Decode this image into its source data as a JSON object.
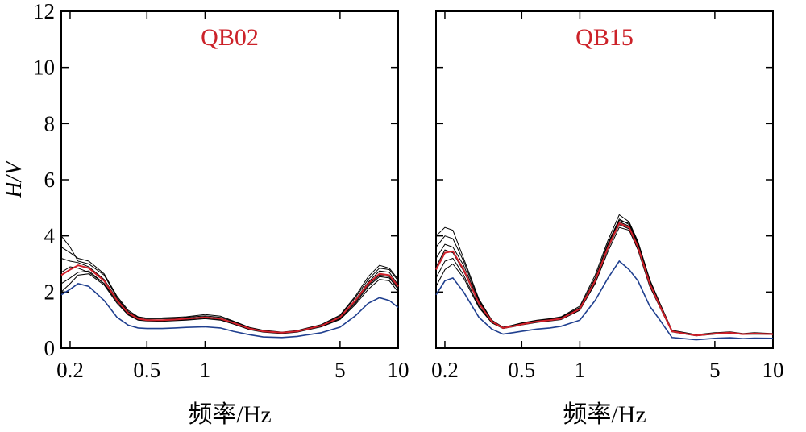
{
  "colors": {
    "mean": "#d0202a",
    "low": "#1f3f8f",
    "runs": "#000000",
    "panel_title": "#cc2229"
  },
  "chart_data": [
    {
      "type": "line",
      "title": "QB02",
      "xlabel": "频率/Hz",
      "ylabel": "H/V",
      "x_scale": "log",
      "xlim": [
        0.18,
        10
      ],
      "ylim": [
        0,
        12
      ],
      "xticks": [
        0.2,
        0.5,
        1,
        5,
        10
      ],
      "xtick_labels": [
        "0.2",
        "0.5",
        "1",
        "5",
        "10"
      ],
      "yticks": [
        0,
        2,
        4,
        6,
        8,
        10,
        12
      ],
      "ytick_labels": [
        "0",
        "2",
        "4",
        "6",
        "8",
        "10",
        "12"
      ],
      "x": [
        0.18,
        0.2,
        0.22,
        0.25,
        0.3,
        0.35,
        0.4,
        0.45,
        0.5,
        0.6,
        0.7,
        0.8,
        1.0,
        1.2,
        1.4,
        1.7,
        2.0,
        2.5,
        3.0,
        4.0,
        5.0,
        6.0,
        7.0,
        8.0,
        9.0,
        10.0
      ],
      "series": [
        {
          "role": "mean",
          "values": [
            2.6,
            2.8,
            2.95,
            2.85,
            2.4,
            1.7,
            1.25,
            1.05,
            1.0,
            1.0,
            1.02,
            1.05,
            1.1,
            1.05,
            0.9,
            0.7,
            0.6,
            0.55,
            0.6,
            0.8,
            1.1,
            1.7,
            2.3,
            2.65,
            2.6,
            2.2
          ]
        },
        {
          "role": "low",
          "values": [
            1.9,
            2.1,
            2.3,
            2.2,
            1.7,
            1.1,
            0.82,
            0.72,
            0.7,
            0.7,
            0.72,
            0.74,
            0.76,
            0.72,
            0.6,
            0.48,
            0.4,
            0.38,
            0.42,
            0.55,
            0.75,
            1.15,
            1.6,
            1.8,
            1.7,
            1.45
          ]
        },
        {
          "role": "run",
          "values": [
            4.0,
            3.6,
            3.1,
            3.0,
            2.6,
            1.8,
            1.3,
            1.1,
            1.05,
            1.05,
            1.05,
            1.1,
            1.15,
            1.1,
            0.95,
            0.72,
            0.62,
            0.55,
            0.62,
            0.82,
            1.15,
            1.8,
            2.45,
            2.85,
            2.8,
            2.4
          ]
        },
        {
          "role": "run",
          "values": [
            3.2,
            3.1,
            3.05,
            2.9,
            2.45,
            1.75,
            1.28,
            1.07,
            1.02,
            1.0,
            1.03,
            1.06,
            1.12,
            1.06,
            0.92,
            0.7,
            0.6,
            0.54,
            0.6,
            0.8,
            1.1,
            1.72,
            2.35,
            2.75,
            2.7,
            2.25
          ]
        },
        {
          "role": "run",
          "values": [
            2.3,
            2.5,
            2.7,
            2.75,
            2.3,
            1.65,
            1.2,
            1.02,
            0.98,
            0.98,
            1.0,
            1.02,
            1.08,
            1.02,
            0.88,
            0.68,
            0.58,
            0.53,
            0.58,
            0.78,
            1.05,
            1.6,
            2.2,
            2.55,
            2.5,
            2.1
          ]
        },
        {
          "role": "run",
          "values": [
            2.0,
            2.3,
            2.6,
            2.65,
            2.25,
            1.6,
            1.18,
            1.0,
            0.97,
            0.96,
            0.98,
            1.0,
            1.05,
            1.0,
            0.86,
            0.66,
            0.57,
            0.52,
            0.57,
            0.76,
            1.02,
            1.55,
            2.1,
            2.45,
            2.4,
            2.0
          ]
        },
        {
          "role": "run",
          "values": [
            3.6,
            3.4,
            3.2,
            3.1,
            2.65,
            1.85,
            1.35,
            1.12,
            1.07,
            1.08,
            1.1,
            1.12,
            1.2,
            1.14,
            0.97,
            0.74,
            0.64,
            0.57,
            0.63,
            0.84,
            1.18,
            1.85,
            2.55,
            2.95,
            2.85,
            2.45
          ]
        },
        {
          "role": "run",
          "values": [
            2.7,
            2.9,
            2.85,
            2.7,
            2.3,
            1.68,
            1.22,
            1.04,
            0.99,
            0.99,
            1.01,
            1.04,
            1.08,
            1.03,
            0.9,
            0.69,
            0.59,
            0.54,
            0.59,
            0.79,
            1.08,
            1.65,
            2.25,
            2.6,
            2.55,
            2.15
          ]
        }
      ]
    },
    {
      "type": "line",
      "title": "QB15",
      "xlabel": "频率/Hz",
      "ylabel": "",
      "x_scale": "log",
      "xlim": [
        0.18,
        10
      ],
      "ylim": [
        0,
        12
      ],
      "xticks": [
        0.2,
        0.5,
        1,
        5,
        10
      ],
      "xtick_labels": [
        "0.2",
        "0.5",
        "1",
        "5",
        "10"
      ],
      "yticks": [
        0,
        2,
        4,
        6,
        8,
        10,
        12
      ],
      "ytick_labels": [],
      "x": [
        0.18,
        0.2,
        0.22,
        0.25,
        0.3,
        0.35,
        0.4,
        0.45,
        0.5,
        0.6,
        0.7,
        0.8,
        1.0,
        1.2,
        1.4,
        1.6,
        1.8,
        2.0,
        2.3,
        2.6,
        3.0,
        4.0,
        5.0,
        6.0,
        7.0,
        8.0,
        10.0
      ],
      "series": [
        {
          "role": "mean",
          "values": [
            2.8,
            3.4,
            3.45,
            2.8,
            1.6,
            0.95,
            0.72,
            0.78,
            0.85,
            0.95,
            1.0,
            1.05,
            1.4,
            2.4,
            3.6,
            4.45,
            4.3,
            3.6,
            2.3,
            1.5,
            0.6,
            0.45,
            0.52,
            0.55,
            0.5,
            0.52,
            0.5
          ]
        },
        {
          "role": "low",
          "values": [
            1.9,
            2.4,
            2.5,
            2.0,
            1.1,
            0.68,
            0.5,
            0.55,
            0.6,
            0.68,
            0.72,
            0.78,
            1.0,
            1.7,
            2.5,
            3.1,
            2.8,
            2.4,
            1.5,
            1.0,
            0.38,
            0.3,
            0.35,
            0.37,
            0.34,
            0.36,
            0.35
          ]
        },
        {
          "role": "run",
          "values": [
            4.0,
            4.3,
            4.2,
            3.2,
            1.75,
            1.0,
            0.75,
            0.82,
            0.9,
            1.0,
            1.05,
            1.12,
            1.5,
            2.6,
            3.85,
            4.75,
            4.5,
            3.8,
            2.45,
            1.6,
            0.64,
            0.48,
            0.55,
            0.58,
            0.52,
            0.55,
            0.52
          ]
        },
        {
          "role": "run",
          "values": [
            3.6,
            4.0,
            3.9,
            3.1,
            1.7,
            0.98,
            0.74,
            0.8,
            0.88,
            0.98,
            1.03,
            1.1,
            1.45,
            2.5,
            3.75,
            4.6,
            4.4,
            3.7,
            2.4,
            1.55,
            0.62,
            0.47,
            0.54,
            0.57,
            0.51,
            0.54,
            0.51
          ]
        },
        {
          "role": "run",
          "values": [
            2.2,
            2.8,
            3.0,
            2.5,
            1.45,
            0.9,
            0.7,
            0.76,
            0.83,
            0.92,
            0.97,
            1.02,
            1.35,
            2.3,
            3.45,
            4.3,
            4.2,
            3.5,
            2.2,
            1.45,
            0.58,
            0.44,
            0.5,
            0.53,
            0.49,
            0.5,
            0.49
          ]
        },
        {
          "role": "run",
          "values": [
            2.5,
            3.1,
            3.2,
            2.6,
            1.5,
            0.92,
            0.71,
            0.77,
            0.84,
            0.93,
            0.98,
            1.04,
            1.38,
            2.35,
            3.55,
            4.4,
            4.25,
            3.55,
            2.25,
            1.48,
            0.59,
            0.45,
            0.51,
            0.54,
            0.5,
            0.51,
            0.5
          ]
        },
        {
          "role": "run",
          "values": [
            3.2,
            3.7,
            3.6,
            2.95,
            1.65,
            0.97,
            0.73,
            0.79,
            0.87,
            0.97,
            1.02,
            1.08,
            1.43,
            2.45,
            3.7,
            4.55,
            4.45,
            3.75,
            2.35,
            1.52,
            0.61,
            0.46,
            0.53,
            0.56,
            0.51,
            0.53,
            0.51
          ]
        },
        {
          "role": "run",
          "values": [
            2.9,
            3.5,
            3.4,
            2.75,
            1.58,
            0.94,
            0.72,
            0.78,
            0.86,
            0.96,
            1.01,
            1.06,
            1.41,
            2.42,
            3.65,
            4.5,
            4.35,
            3.65,
            2.3,
            1.5,
            0.6,
            0.45,
            0.52,
            0.55,
            0.5,
            0.52,
            0.5
          ]
        }
      ]
    }
  ]
}
